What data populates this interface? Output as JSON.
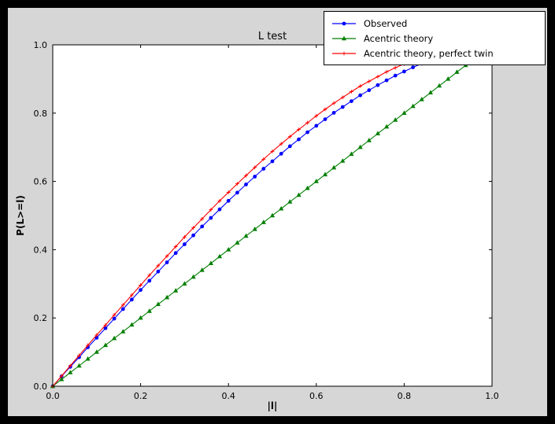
{
  "window": {
    "outer_background": "#000000",
    "figure_background": "#d6d6d6",
    "plot_background": "#ffffff"
  },
  "chart_data": {
    "type": "line",
    "title": "L test",
    "xlabel": "|l|",
    "ylabel": "P(L>=l)",
    "xlim": [
      0,
      1
    ],
    "ylim": [
      0,
      1
    ],
    "grid": false,
    "legend_position": "upper right",
    "xtick_labels": [
      "0.0",
      "0.2",
      "0.4",
      "0.6",
      "0.8",
      "1.0"
    ],
    "ytick_labels": [
      "0.0",
      "0.2",
      "0.4",
      "0.6",
      "0.8",
      "1.0"
    ],
    "xticks": [
      0,
      0.2,
      0.4,
      0.6,
      0.8,
      1.0
    ],
    "yticks": [
      0,
      0.2,
      0.4,
      0.6,
      0.8,
      1.0
    ],
    "series": [
      {
        "name": "Observed",
        "color": "#0000ff",
        "marker": "circle",
        "x": [
          0,
          0.02,
          0.04,
          0.06,
          0.08,
          0.1,
          0.12,
          0.14,
          0.16,
          0.18,
          0.2,
          0.22,
          0.24,
          0.26,
          0.28,
          0.3,
          0.32,
          0.34,
          0.36,
          0.38,
          0.4,
          0.42,
          0.44,
          0.46,
          0.48,
          0.5,
          0.52,
          0.54,
          0.56,
          0.58,
          0.6,
          0.62,
          0.64,
          0.66,
          0.68,
          0.7,
          0.72,
          0.74,
          0.76,
          0.78,
          0.8,
          0.82,
          0.84,
          0.86
        ],
        "y": [
          0,
          0.029,
          0.057,
          0.085,
          0.114,
          0.142,
          0.17,
          0.198,
          0.226,
          0.254,
          0.282,
          0.309,
          0.336,
          0.363,
          0.39,
          0.416,
          0.442,
          0.468,
          0.493,
          0.518,
          0.543,
          0.567,
          0.591,
          0.614,
          0.637,
          0.659,
          0.681,
          0.703,
          0.723,
          0.744,
          0.763,
          0.782,
          0.801,
          0.818,
          0.835,
          0.852,
          0.867,
          0.882,
          0.896,
          0.91,
          0.922,
          0.934,
          0.945,
          0.955
        ]
      },
      {
        "name": "Acentric theory",
        "color": "#007f00",
        "marker": "triangle",
        "x": [
          0,
          0.02,
          0.04,
          0.06,
          0.08,
          0.1,
          0.12,
          0.14,
          0.16,
          0.18,
          0.2,
          0.22,
          0.24,
          0.26,
          0.28,
          0.3,
          0.32,
          0.34,
          0.36,
          0.38,
          0.4,
          0.42,
          0.44,
          0.46,
          0.48,
          0.5,
          0.52,
          0.54,
          0.56,
          0.58,
          0.6,
          0.62,
          0.64,
          0.66,
          0.68,
          0.7,
          0.72,
          0.74,
          0.76,
          0.78,
          0.8,
          0.82,
          0.84,
          0.86,
          0.88,
          0.9,
          0.92,
          0.94,
          0.96
        ],
        "y": [
          0,
          0.02,
          0.04,
          0.06,
          0.08,
          0.1,
          0.12,
          0.14,
          0.16,
          0.18,
          0.2,
          0.22,
          0.24,
          0.26,
          0.28,
          0.3,
          0.32,
          0.34,
          0.36,
          0.38,
          0.4,
          0.42,
          0.44,
          0.46,
          0.48,
          0.5,
          0.52,
          0.54,
          0.56,
          0.58,
          0.6,
          0.62,
          0.64,
          0.66,
          0.68,
          0.7,
          0.72,
          0.74,
          0.76,
          0.78,
          0.8,
          0.82,
          0.84,
          0.86,
          0.88,
          0.9,
          0.92,
          0.94,
          0.96
        ]
      },
      {
        "name": "Acentric theory, perfect twin",
        "color": "#ff0000",
        "marker": "plus",
        "x": [
          0,
          0.02,
          0.04,
          0.06,
          0.08,
          0.1,
          0.12,
          0.14,
          0.16,
          0.18,
          0.2,
          0.22,
          0.24,
          0.26,
          0.28,
          0.3,
          0.32,
          0.34,
          0.36,
          0.38,
          0.4,
          0.42,
          0.44,
          0.46,
          0.48,
          0.5,
          0.52,
          0.54,
          0.56,
          0.58,
          0.6,
          0.62,
          0.64,
          0.66,
          0.68,
          0.7,
          0.72,
          0.74,
          0.76,
          0.78,
          0.8,
          0.82,
          0.84,
          0.86
        ],
        "y": [
          0,
          0.03,
          0.06,
          0.09,
          0.12,
          0.15,
          0.179,
          0.209,
          0.238,
          0.267,
          0.296,
          0.325,
          0.353,
          0.381,
          0.409,
          0.437,
          0.464,
          0.49,
          0.517,
          0.543,
          0.568,
          0.593,
          0.617,
          0.641,
          0.665,
          0.688,
          0.71,
          0.731,
          0.752,
          0.772,
          0.792,
          0.811,
          0.829,
          0.846,
          0.863,
          0.879,
          0.893,
          0.907,
          0.921,
          0.933,
          0.944,
          0.954,
          0.964,
          0.972
        ]
      }
    ]
  }
}
